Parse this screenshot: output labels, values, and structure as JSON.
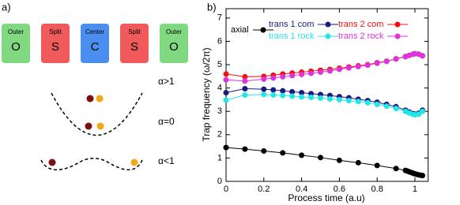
{
  "panel_a": {
    "label": "a)",
    "electrodes": [
      {
        "name": "Outer",
        "letter": "O"
      },
      {
        "name": "Split",
        "letter": "S"
      },
      {
        "name": "Center",
        "letter": "C"
      },
      {
        "name": "Split",
        "letter": "S"
      },
      {
        "name": "Outer",
        "letter": "O"
      }
    ],
    "regimes": [
      "α>1",
      "α=0",
      "α<1"
    ]
  },
  "chart_data": {
    "type": "line",
    "panel_label": "b)",
    "xlabel": "Process time (a.u)",
    "ylabel": "Trap frequency (ω/2π)",
    "xlim": [
      0,
      1.07
    ],
    "ylim": [
      0,
      7.4
    ],
    "xticks": [
      0,
      0.2,
      0.4,
      0.6,
      0.8,
      1
    ],
    "yticks": [
      0,
      1,
      2,
      3,
      4,
      5,
      6,
      7
    ],
    "series": [
      {
        "name": "axial",
        "color": "#000000",
        "x": [
          0,
          0.1,
          0.2,
          0.3,
          0.4,
          0.5,
          0.6,
          0.7,
          0.8,
          0.9,
          0.95,
          0.96,
          0.97,
          0.98,
          0.99,
          1.0,
          1.01,
          1.02,
          1.03,
          1.04
        ],
        "values": [
          1.45,
          1.38,
          1.3,
          1.22,
          1.12,
          1.02,
          0.9,
          0.8,
          0.68,
          0.55,
          0.47,
          0.44,
          0.41,
          0.38,
          0.35,
          0.32,
          0.3,
          0.28,
          0.26,
          0.25
        ]
      },
      {
        "name": "trans 1 com",
        "color": "#1a1a80",
        "x": [
          0,
          0.1,
          0.2,
          0.25,
          0.3,
          0.35,
          0.4,
          0.45,
          0.5,
          0.55,
          0.6,
          0.65,
          0.7,
          0.75,
          0.8,
          0.85,
          0.9,
          0.95,
          0.97,
          0.99,
          1.0,
          1.02,
          1.04
        ],
        "values": [
          3.8,
          3.97,
          3.95,
          3.92,
          3.88,
          3.84,
          3.8,
          3.76,
          3.72,
          3.68,
          3.63,
          3.58,
          3.52,
          3.46,
          3.39,
          3.3,
          3.2,
          3.05,
          2.97,
          2.9,
          2.88,
          2.92,
          3.05
        ]
      },
      {
        "name": "trans 1 rock",
        "color": "#22e6e6",
        "x": [
          0,
          0.1,
          0.2,
          0.25,
          0.3,
          0.35,
          0.4,
          0.45,
          0.5,
          0.55,
          0.6,
          0.65,
          0.7,
          0.75,
          0.8,
          0.85,
          0.9,
          0.95,
          0.97,
          0.99,
          1.0,
          1.02,
          1.04
        ],
        "values": [
          3.48,
          3.7,
          3.72,
          3.7,
          3.68,
          3.65,
          3.62,
          3.6,
          3.57,
          3.53,
          3.5,
          3.46,
          3.42,
          3.37,
          3.3,
          3.22,
          3.12,
          3.0,
          2.93,
          2.87,
          2.85,
          2.88,
          3.0
        ]
      },
      {
        "name": "trans 2 com",
        "color": "#ee1111",
        "x": [
          0,
          0.1,
          0.2,
          0.25,
          0.3,
          0.35,
          0.4,
          0.45,
          0.5,
          0.55,
          0.6,
          0.65,
          0.7,
          0.75,
          0.8,
          0.85,
          0.9,
          0.95,
          0.97,
          0.99,
          1.0,
          1.02,
          1.04
        ],
        "values": [
          4.6,
          4.48,
          4.5,
          4.55,
          4.6,
          4.64,
          4.68,
          4.72,
          4.76,
          4.8,
          4.85,
          4.9,
          4.95,
          5.0,
          5.08,
          5.15,
          5.25,
          5.35,
          5.4,
          5.45,
          5.47,
          5.45,
          5.38
        ]
      },
      {
        "name": "trans 2 rock",
        "color": "#dd33dd",
        "x": [
          0,
          0.1,
          0.2,
          0.25,
          0.3,
          0.35,
          0.4,
          0.45,
          0.5,
          0.55,
          0.6,
          0.65,
          0.7,
          0.75,
          0.8,
          0.85,
          0.9,
          0.95,
          0.97,
          0.99,
          1.0,
          1.02,
          1.04
        ],
        "values": [
          4.35,
          4.3,
          4.38,
          4.43,
          4.48,
          4.53,
          4.58,
          4.63,
          4.68,
          4.73,
          4.8,
          4.86,
          4.92,
          4.98,
          5.06,
          5.14,
          5.24,
          5.34,
          5.4,
          5.45,
          5.47,
          5.45,
          5.38
        ]
      }
    ]
  }
}
